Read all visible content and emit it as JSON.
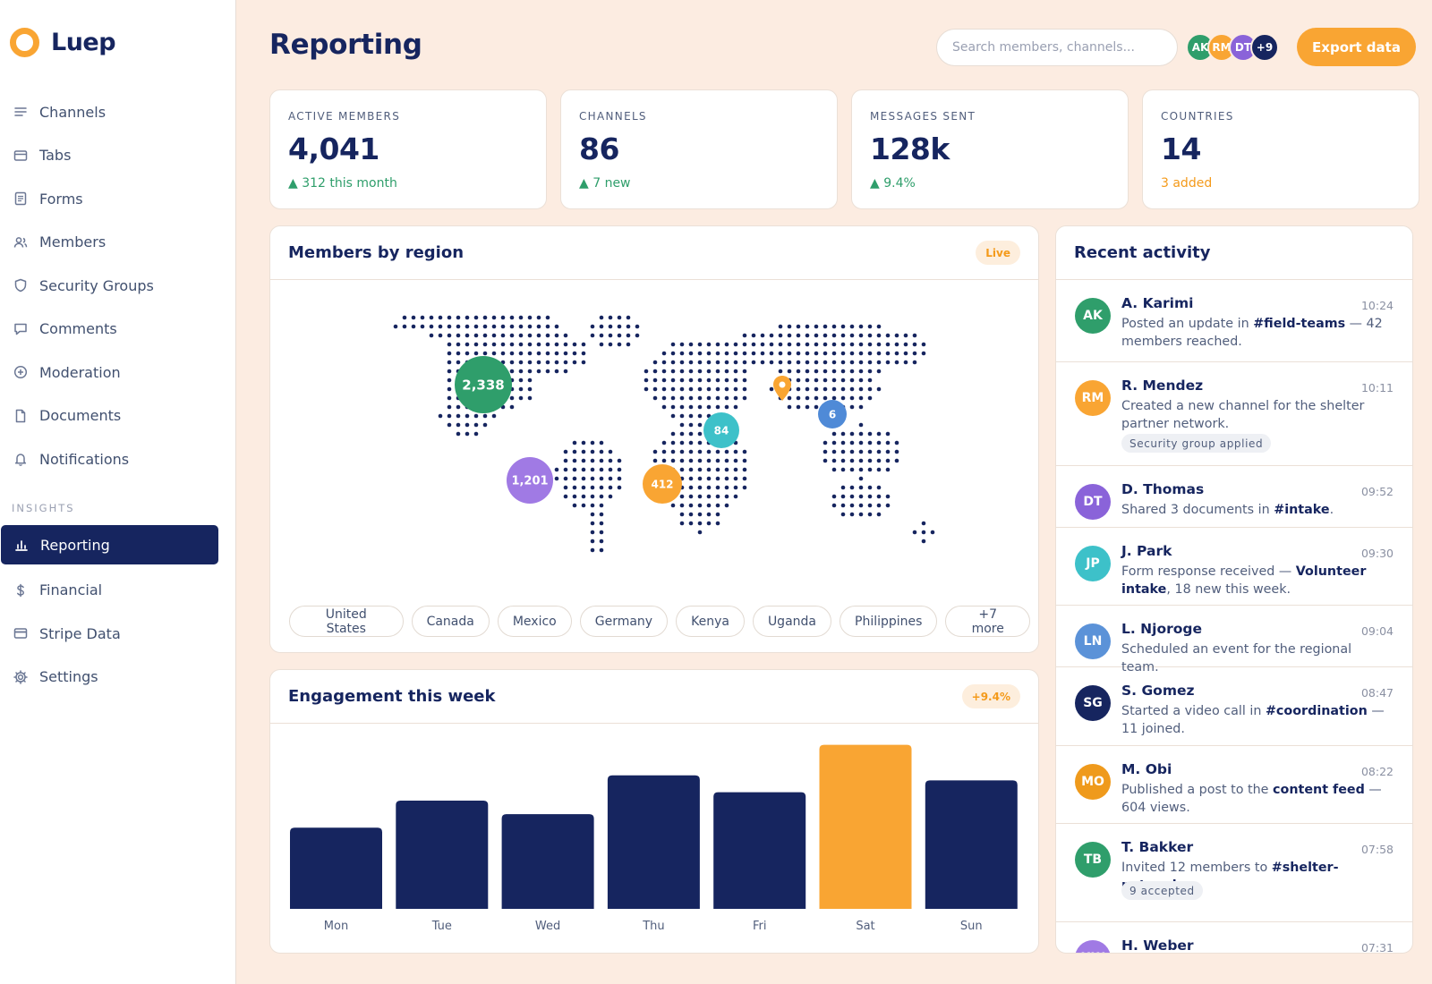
{
  "app": {
    "name": "Luep"
  },
  "sidebar": {
    "items": [
      {
        "label": "Channels",
        "icon": "list-icon"
      },
      {
        "label": "Tabs",
        "icon": "tab-icon"
      },
      {
        "label": "Forms",
        "icon": "form-icon"
      },
      {
        "label": "Members",
        "icon": "members-icon"
      },
      {
        "label": "Security Groups",
        "icon": "shield-icon"
      },
      {
        "label": "Comments",
        "icon": "comment-icon"
      },
      {
        "label": "Moderation",
        "icon": "plus-circle-icon"
      },
      {
        "label": "Documents",
        "icon": "document-icon"
      },
      {
        "label": "Notifications",
        "icon": "bell-icon"
      }
    ],
    "section_label": "INSIGHTS",
    "insights": [
      {
        "label": "Reporting",
        "icon": "bar-chart-icon",
        "active": true
      },
      {
        "label": "Financial",
        "icon": "dollar-icon"
      },
      {
        "label": "Stripe Data",
        "icon": "card-icon"
      },
      {
        "label": "Settings",
        "icon": "gear-icon"
      }
    ]
  },
  "header": {
    "title": "Reporting",
    "search_placeholder": "Search members, channels...",
    "avatars": [
      {
        "initials": "AK",
        "color": "#2f9e6b"
      },
      {
        "initials": "RM",
        "color": "#f9a533"
      },
      {
        "initials": "DT",
        "color": "#8a63d9"
      },
      {
        "initials": "+9",
        "color": "#16255f"
      }
    ],
    "export_label": "Export data"
  },
  "stats": [
    {
      "label": "ACTIVE MEMBERS",
      "value": "4,041",
      "delta": "▲ 312 this month",
      "delta_color": "#2f9e6b"
    },
    {
      "label": "CHANNELS",
      "value": "86",
      "delta": "▲ 7 new",
      "delta_color": "#2f9e6b"
    },
    {
      "label": "MESSAGES SENT",
      "value": "128k",
      "delta": "▲ 9.4%",
      "delta_color": "#2f9e6b"
    },
    {
      "label": "COUNTRIES",
      "value": "14",
      "delta": "3 added",
      "delta_color": "#f49a1a"
    }
  ],
  "region_card": {
    "title": "Members by region",
    "badge": "Live",
    "bubbles": [
      {
        "label": "2,338",
        "color": "#2f9e6b"
      },
      {
        "label": "1,201",
        "color": "#a07ae4"
      },
      {
        "label": "412",
        "color": "#f9a533"
      },
      {
        "label": "84",
        "color": "#3dc1c9"
      },
      {
        "label": "6",
        "color": "#4f8ad7"
      }
    ],
    "chips": [
      "United States",
      "Canada",
      "Mexico",
      "Germany",
      "Kenya",
      "Uganda",
      "Philippines",
      "+7 more"
    ]
  },
  "engagement_card": {
    "title": "Engagement this week",
    "badge": "+9.4%"
  },
  "chart_data": {
    "type": "bar",
    "categories": [
      "Mon",
      "Tue",
      "Wed",
      "Thu",
      "Fri",
      "Sat",
      "Sun"
    ],
    "values": [
      48,
      64,
      56,
      79,
      69,
      97,
      76
    ],
    "ylim": [
      0,
      100
    ],
    "highlight": "Sat",
    "colors": {
      "default": "#16255f",
      "highlight": "#f9a533"
    },
    "grid": false
  },
  "activity": {
    "title": "Recent activity",
    "items": [
      {
        "initials": "AK",
        "color": "#2f9e6b",
        "name": "A. Karimi",
        "time": "10:24",
        "msg_html": "Posted an update in <b>#field-teams</b> — 42 members reached."
      },
      {
        "initials": "RM",
        "color": "#f9a533",
        "name": "R. Mendez",
        "time": "10:11",
        "msg_html": "Created a new channel for the shelter partner network.",
        "tag": "Security group applied"
      },
      {
        "initials": "DT",
        "color": "#8a63d9",
        "name": "D. Thomas",
        "time": "09:52",
        "msg_html": "Shared 3 documents in <b>#intake</b>."
      },
      {
        "initials": "JP",
        "color": "#3dc1c9",
        "name": "J. Park",
        "time": "09:30",
        "msg_html": "Form response received — <b>Volunteer intake</b>, 18 new this week."
      },
      {
        "initials": "LN",
        "color": "#5b92d8",
        "name": "L. Njoroge",
        "time": "09:04",
        "msg_html": "Scheduled an event for the regional team."
      },
      {
        "initials": "SG",
        "color": "#16255f",
        "name": "S. Gomez",
        "time": "08:47",
        "msg_html": "Started a video call in <b>#coordination</b> — 11 joined."
      },
      {
        "initials": "MO",
        "color": "#ef9a1c",
        "name": "M. Obi",
        "time": "08:22",
        "msg_html": "Published a post to the <b>content feed</b> — 604 views."
      },
      {
        "initials": "TB",
        "color": "#2f9e6b",
        "name": "T. Bakker",
        "time": "07:58",
        "msg_html": "Invited 12 members to <b>#shelter-network</b>.",
        "tag": "9 accepted"
      },
      {
        "initials": "HW",
        "color": "#a07ae4",
        "name": "H. Weber",
        "time": "07:31",
        "msg_html": ""
      }
    ]
  }
}
